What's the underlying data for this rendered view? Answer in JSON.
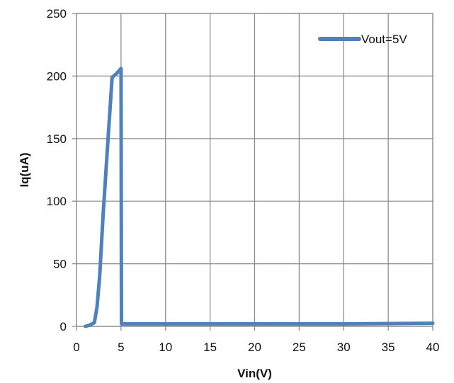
{
  "chart_data": {
    "type": "line",
    "xlabel": "Vin(V)",
    "ylabel": "Iq(uA)",
    "xlim": [
      0,
      40
    ],
    "ylim": [
      0,
      250
    ],
    "xticks": [
      0,
      5,
      10,
      15,
      20,
      25,
      30,
      35,
      40
    ],
    "yticks": [
      0,
      50,
      100,
      150,
      200,
      250
    ],
    "grid": true,
    "legend_position": "top-right",
    "series": [
      {
        "name": "Vout=5V",
        "color": "#4F81BD",
        "x": [
          1.0,
          1.5,
          2.0,
          2.3,
          2.6,
          3.0,
          3.5,
          4.0,
          4.5,
          5.0,
          5.05,
          10,
          20,
          30,
          40
        ],
        "y": [
          0,
          1,
          3,
          15,
          40,
          90,
          145,
          199,
          202,
          206,
          2,
          2,
          2,
          2,
          2.5
        ]
      }
    ]
  }
}
